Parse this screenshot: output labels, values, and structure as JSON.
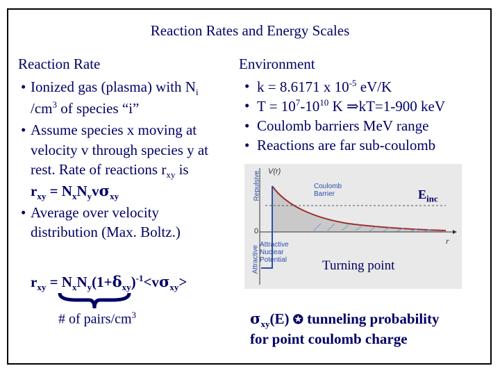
{
  "title": "Reaction Rates and Energy Scales",
  "left": {
    "heading": "Reaction Rate",
    "b1_line1": "Ionized gas (plasma) with N",
    "b1_line1_sub": "i",
    "b1_line2_a": "/cm",
    "b1_line2_sup": "3",
    "b1_line2_b": " of  species “i”",
    "b2_line1": "Assume species x moving at",
    "b2_line2": "velocity v through species y at",
    "b2_line3_a": "rest.  Rate of reactions r",
    "b2_line3_sub": "xy",
    "b2_line3_b": "  is",
    "b2_eq_r": "r",
    "b2_eq_r_sub": "xy",
    "b2_eq_mid": " = N",
    "b2_eq_n1_sub": "x",
    "b2_eq_n2": "N",
    "b2_eq_n2_sub": "y",
    "b2_eq_v": "v",
    "b2_eq_sigma": "σ",
    "b2_eq_sigma_sub": "xy",
    "b3_line1": "Average over velocity",
    "b3_line2": "distribution (Max. Boltz.)",
    "bullet_char": "•"
  },
  "equation": {
    "r": "r",
    "r_sub": "xy",
    "eq": " = N",
    "n1_sub": "x",
    "n2": "N",
    "n2_sub": "y",
    "paren_open": "(1+",
    "delta": "δ",
    "delta_sub": "xy",
    "paren_close": ")",
    "exp": "-1",
    "bracket": "<v",
    "sigma": "σ",
    "sigma_sub": "xy",
    "bracket_close": ">",
    "pairs_a": "# of pairs/cm",
    "pairs_sup": "3"
  },
  "right": {
    "heading": "Environment",
    "i1_a": "k = 8.6171 x 10",
    "i1_sup": "-5",
    "i1_b": " eV/K",
    "i2_a": "T = 10",
    "i2_sup1": "7",
    "i2_mid": "-10",
    "i2_sup2": "10",
    "i2_b": " K ",
    "i2_arrow": "⇒",
    "i2_c": "kT=1-900 keV",
    "i3": "Coulomb barriers MeV range",
    "i4": "Reactions are far sub-coulomb"
  },
  "plot": {
    "v_label": "V(r)",
    "repulsive": "Repulsive",
    "attractive": "Attractive",
    "barrier_line1": "Coulomb",
    "barrier_line2": "Barrier",
    "nuclear_line1": "Attractive",
    "nuclear_line2": "Nuclear",
    "nuclear_line3": "Potential",
    "zero": "0",
    "r_axis": "r",
    "einc": "E",
    "einc_sub": "inc",
    "turning": "Turning   point"
  },
  "bottom": {
    "sigma": "σ",
    "sigma_sub": "xy",
    "e_part": "(E) ",
    "prop": "✪",
    "tunnel": " tunneling probability",
    "line2": "for  point coulomb charge"
  },
  "colors": {
    "text": "#000066",
    "plot_bg": "#e9e9e9",
    "curve": "#9b2f2f",
    "label_blue": "#2a4fa8"
  }
}
